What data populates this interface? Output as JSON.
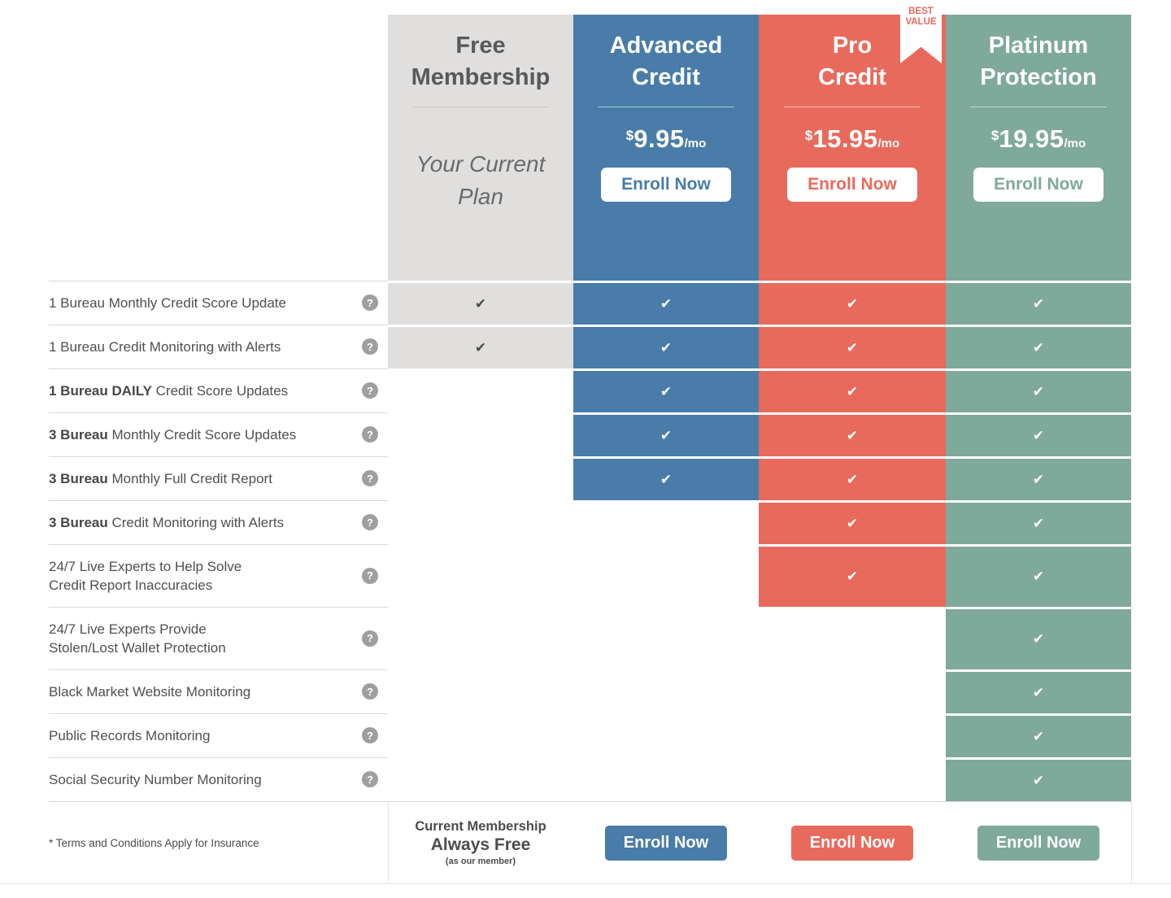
{
  "colors": {
    "free_bg": "#e0dfdd",
    "advanced": "#497ca8",
    "pro": "#e86a5c",
    "platinum": "#7fa99a"
  },
  "glyphs": {
    "check": "✔",
    "help": "?"
  },
  "plans": {
    "free": {
      "title_line1": "Free",
      "title_line2": "Membership",
      "subtitle_line1": "Your Current",
      "subtitle_line2": "Plan"
    },
    "advanced": {
      "title_line1": "Advanced",
      "title_line2": "Credit",
      "price_currency": "$",
      "price_amount": "9.95",
      "price_period": "/mo",
      "enroll_label": "Enroll Now"
    },
    "pro": {
      "title_line1": "Pro",
      "title_line2": "Credit",
      "badge_line1": "BEST",
      "badge_line2": "VALUE",
      "price_currency": "$",
      "price_amount": "15.95",
      "price_period": "/mo",
      "enroll_label": "Enroll Now"
    },
    "platinum": {
      "title_line1": "Platinum",
      "title_line2": "Protection",
      "price_currency": "$",
      "price_amount": "19.95",
      "price_period": "/mo",
      "enroll_label": "Enroll Now"
    }
  },
  "rows": [
    {
      "bold": "",
      "text": "1 Bureau Monthly Credit Score Update",
      "line2": "",
      "checks": [
        true,
        true,
        true,
        true
      ]
    },
    {
      "bold": "",
      "text": "1 Bureau Credit Monitoring with Alerts",
      "line2": "",
      "checks": [
        true,
        true,
        true,
        true
      ]
    },
    {
      "bold": "1 Bureau DAILY",
      "text": " Credit Score Updates",
      "line2": "",
      "checks": [
        false,
        true,
        true,
        true
      ]
    },
    {
      "bold": "3 Bureau",
      "text": " Monthly Credit Score Updates",
      "line2": "",
      "checks": [
        false,
        true,
        true,
        true
      ]
    },
    {
      "bold": "3 Bureau",
      "text": " Monthly Full Credit Report",
      "line2": "",
      "checks": [
        false,
        true,
        true,
        true
      ]
    },
    {
      "bold": "3 Bureau",
      "text": " Credit Monitoring with Alerts",
      "line2": "",
      "checks": [
        false,
        false,
        true,
        true
      ]
    },
    {
      "bold": "",
      "text": "24/7 Live Experts to Help Solve",
      "line2": "Credit Report Inaccuracies",
      "checks": [
        false,
        false,
        true,
        true
      ]
    },
    {
      "bold": "",
      "text": "24/7 Live Experts Provide",
      "line2": "Stolen/Lost Wallet Protection",
      "checks": [
        false,
        false,
        false,
        true
      ]
    },
    {
      "bold": "",
      "text": "Black Market Website Monitoring",
      "line2": "",
      "checks": [
        false,
        false,
        false,
        true
      ]
    },
    {
      "bold": "",
      "text": "Public Records Monitoring",
      "line2": "",
      "checks": [
        false,
        false,
        false,
        true
      ]
    },
    {
      "bold": "",
      "text": "Social Security Number Monitoring",
      "line2": "",
      "checks": [
        false,
        false,
        false,
        true
      ]
    }
  ],
  "footer": {
    "terms": "* Terms and Conditions Apply for Insurance",
    "free_line1": "Current Membership",
    "free_line2": "Always Free",
    "free_line3": "(as our member)",
    "enroll_label": "Enroll Now"
  }
}
